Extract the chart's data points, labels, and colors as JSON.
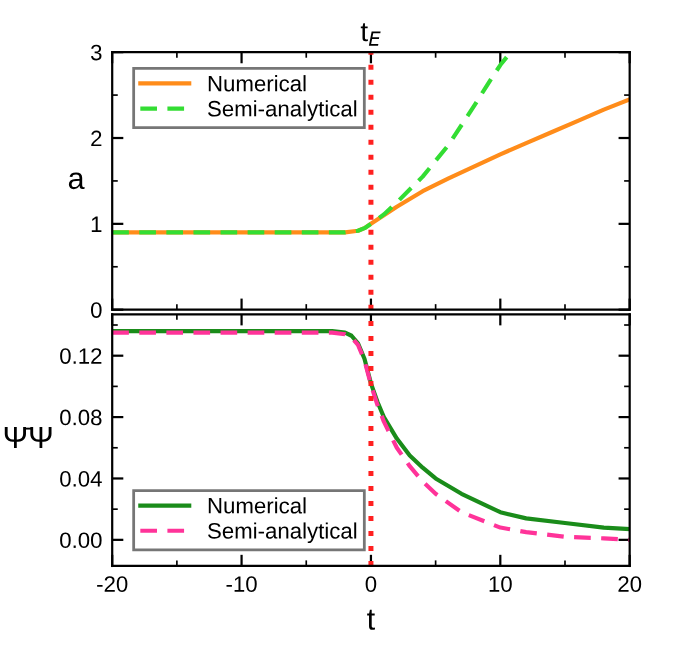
{
  "chart_data": [
    {
      "type": "line",
      "ylabel": "a",
      "xlim": [
        -20,
        20
      ],
      "ylim": [
        0,
        3
      ],
      "xticks": [
        -20,
        -10,
        0,
        10,
        20
      ],
      "yticks": [
        0,
        1,
        2,
        3
      ],
      "tick_labels": "y",
      "legend": "top left",
      "grid": false,
      "ref_lines": [
        {
          "axis": "x",
          "value": 0,
          "label": "t$_{E}$",
          "color": "#ff2020",
          "line_style": "dotted"
        }
      ],
      "series": [
        {
          "name": "Numerical",
          "color": "#ff8c1a",
          "line_style": "solid",
          "x": [
            -20,
            -10,
            -3,
            -2,
            -1,
            -0.5,
            0,
            1,
            2,
            4,
            6,
            8,
            10,
            12,
            14,
            16,
            18,
            20
          ],
          "values": [
            0.9,
            0.9,
            0.9,
            0.9,
            0.92,
            0.95,
            1.0,
            1.1,
            1.2,
            1.38,
            1.53,
            1.67,
            1.81,
            1.94,
            2.07,
            2.2,
            2.33,
            2.45
          ]
        },
        {
          "name": "Semi-analytical",
          "color": "#33dd33",
          "line_style": "dashed",
          "x": [
            -20,
            -10,
            -3,
            -2,
            -1,
            -0.5,
            0,
            1,
            2,
            4,
            6,
            8,
            9,
            10,
            10.8
          ],
          "values": [
            0.9,
            0.9,
            0.9,
            0.9,
            0.92,
            0.95,
            1.0,
            1.11,
            1.25,
            1.55,
            1.92,
            2.38,
            2.62,
            2.85,
            3.0
          ]
        }
      ]
    },
    {
      "type": "line",
      "xlabel": "t",
      "ylabel": "Ψ̄Ψ",
      "xlim": [
        -20,
        20
      ],
      "ylim": [
        -0.017,
        0.147
      ],
      "xticks": [
        -20,
        -10,
        0,
        10,
        20
      ],
      "yticks": [
        {
          "value": 0,
          "label": "0.00"
        },
        0.04,
        0.08,
        0.12
      ],
      "legend": "bottom left",
      "grid": false,
      "ref_lines": [
        {
          "axis": "x",
          "value": 0,
          "color": "#ff2020",
          "line_style": "dotted"
        }
      ],
      "series": [
        {
          "name": "Numerical",
          "color": "#1a8c1a",
          "line_style": "solid",
          "x": [
            -20,
            -10,
            -3,
            -2,
            -1.5,
            -1,
            -0.5,
            0,
            0.5,
            1,
            2,
            3,
            4,
            5,
            7,
            10,
            12,
            15,
            18,
            20
          ],
          "values": [
            0.136,
            0.136,
            0.136,
            0.135,
            0.133,
            0.128,
            0.118,
            0.102,
            0.09,
            0.08,
            0.066,
            0.055,
            0.047,
            0.04,
            0.03,
            0.018,
            0.014,
            0.011,
            0.008,
            0.007
          ]
        },
        {
          "name": "Semi-analytical",
          "color": "#ff3399",
          "line_style": "dashed",
          "x": [
            -20,
            -10,
            -3,
            -2,
            -1.5,
            -1,
            -0.5,
            0,
            0.5,
            1,
            2,
            3,
            4,
            5,
            7,
            10,
            12,
            15,
            18,
            20
          ],
          "values": [
            0.135,
            0.135,
            0.135,
            0.134,
            0.132,
            0.127,
            0.117,
            0.101,
            0.088,
            0.077,
            0.06,
            0.048,
            0.038,
            0.03,
            0.018,
            0.008,
            0.005,
            0.002,
            0.001,
            0.0
          ]
        }
      ]
    }
  ]
}
